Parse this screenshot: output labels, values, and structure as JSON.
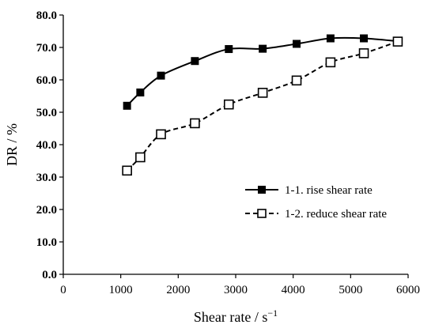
{
  "chart_data": {
    "type": "line",
    "xlabel": "Shear rate / s",
    "xlabel_superscript": "−1",
    "ylabel": "DR / %",
    "xlim": [
      0,
      6000
    ],
    "ylim": [
      0,
      80
    ],
    "x_ticks": [
      0,
      1000,
      2000,
      3000,
      4000,
      5000,
      6000
    ],
    "x_tick_labels": [
      "0",
      "1000",
      "2000",
      "3000",
      "4000",
      "5000",
      "6000"
    ],
    "y_ticks": [
      0,
      10,
      20,
      30,
      40,
      50,
      60,
      70,
      80
    ],
    "y_tick_labels": [
      "0.0",
      "10.0",
      "20.0",
      "30.0",
      "40.0",
      "50.0",
      "60.0",
      "70.0",
      "80.0"
    ],
    "grid": false,
    "legend_position": "right-middle",
    "series": [
      {
        "name": "1-1. rise shear rate",
        "line_style": "solid",
        "marker": "filled-square",
        "color": "#000000",
        "x": [
          1110,
          1340,
          1700,
          2290,
          2880,
          3470,
          4060,
          4650,
          5230,
          5820
        ],
        "y": [
          52.0,
          56.1,
          61.3,
          65.8,
          69.5,
          69.6,
          71.1,
          72.8,
          72.8,
          71.9
        ]
      },
      {
        "name": "1-2. reduce shear rate",
        "line_style": "dashed",
        "marker": "open-square",
        "color": "#000000",
        "x": [
          1110,
          1340,
          1700,
          2290,
          2880,
          3470,
          4060,
          4650,
          5230,
          5820
        ],
        "y": [
          32.0,
          36.1,
          43.2,
          46.6,
          52.4,
          56.0,
          59.8,
          65.4,
          68.2,
          71.8
        ]
      }
    ]
  }
}
